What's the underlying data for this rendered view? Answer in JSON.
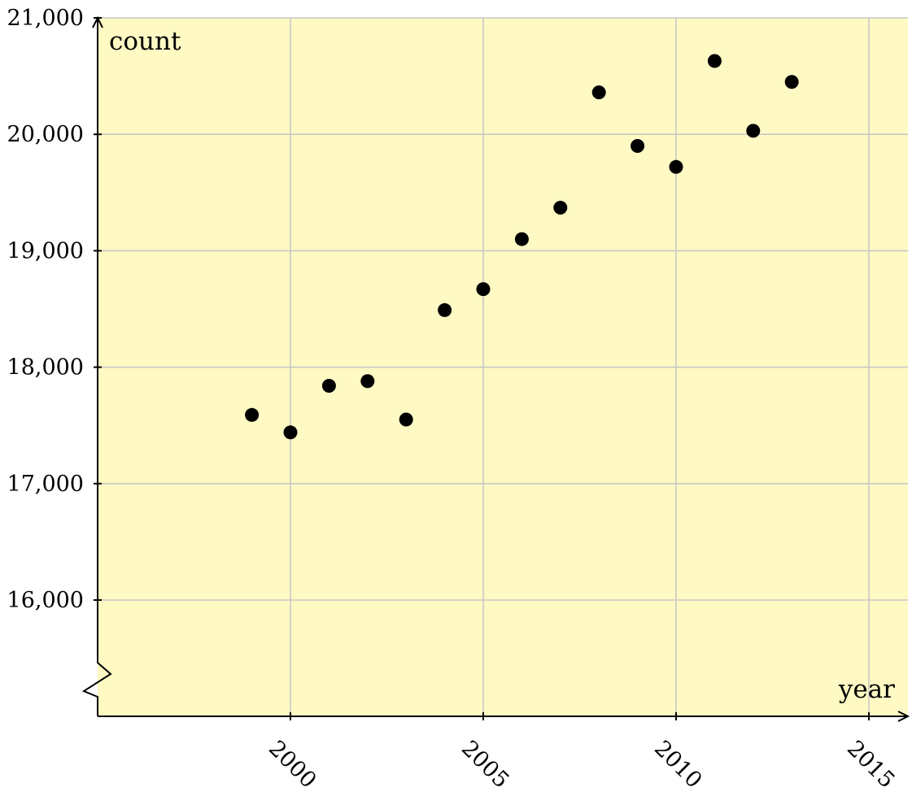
{
  "chart_data": {
    "type": "scatter",
    "title": "",
    "xlabel": "year",
    "ylabel": "count",
    "xlim": [
      1995,
      2016
    ],
    "ylim": [
      15000,
      21000
    ],
    "y_axis_break": true,
    "grid": true,
    "background_color": "#fff9c4",
    "marker_color": "#000000",
    "x_ticks": [
      2000,
      2005,
      2010,
      2015
    ],
    "x_tick_labels": [
      "2000",
      "2005",
      "2010",
      "2015"
    ],
    "y_ticks": [
      16000,
      17000,
      18000,
      19000,
      20000,
      21000
    ],
    "y_tick_labels": [
      "16,000",
      "17,000",
      "18,000",
      "19,000",
      "20,000",
      "21,000"
    ],
    "x": [
      1999,
      2000,
      2001,
      2002,
      2003,
      2004,
      2005,
      2006,
      2007,
      2008,
      2009,
      2010,
      2011,
      2012,
      2013
    ],
    "y": [
      17590,
      17440,
      17840,
      17880,
      17550,
      18490,
      18670,
      19100,
      19370,
      20360,
      19900,
      19720,
      20630,
      20030,
      20450
    ]
  }
}
